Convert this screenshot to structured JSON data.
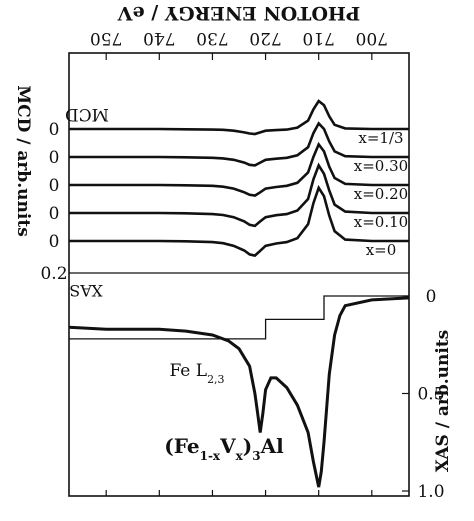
{
  "chart_data": [
    {
      "type": "line",
      "title": "",
      "xlabel": "PHOTON ENERGY / eV",
      "ylabel": "MCD / arb.units",
      "xlim": [
        693,
        757
      ],
      "x_ticks": [
        700,
        710,
        720,
        730,
        740,
        750
      ],
      "y_tick_labels": [
        "0",
        "0",
        "0",
        "0",
        "0",
        "0.2"
      ],
      "offset_spacing": 0.1,
      "scale_bar_label": "0.2",
      "panel_label": "MCD",
      "grid": false,
      "series": [
        {
          "name": "x=1/3",
          "offset": 0.4,
          "x": [
            693,
            700,
            705,
            707,
            708,
            709,
            710,
            711,
            712,
            714,
            716,
            718,
            720,
            721,
            722,
            723,
            724,
            726,
            728,
            730,
            735,
            740,
            745,
            750,
            757
          ],
          "y": [
            0,
            0,
            0.002,
            0.015,
            0.045,
            0.085,
            0.1,
            0.07,
            0.03,
            0.005,
            -0.002,
            -0.004,
            -0.006,
            -0.012,
            -0.018,
            -0.016,
            -0.012,
            -0.006,
            -0.003,
            -0.002,
            -0.001,
            0,
            0,
            0,
            0
          ]
        },
        {
          "name": "x=0.30",
          "offset": 0.3,
          "x": [
            693,
            700,
            705,
            707,
            708,
            709,
            710,
            711,
            712,
            714,
            716,
            718,
            720,
            721,
            722,
            723,
            724,
            726,
            728,
            730,
            735,
            740,
            745,
            750,
            757
          ],
          "y": [
            0,
            0,
            0.003,
            0.02,
            0.055,
            0.1,
            0.12,
            0.085,
            0.035,
            0.006,
            -0.003,
            -0.006,
            -0.01,
            -0.02,
            -0.03,
            -0.028,
            -0.02,
            -0.01,
            -0.005,
            -0.003,
            -0.001,
            0,
            0,
            0,
            0
          ]
        },
        {
          "name": "x=0.20",
          "offset": 0.2,
          "x": [
            693,
            700,
            705,
            707,
            708,
            709,
            710,
            711,
            712,
            714,
            716,
            718,
            720,
            721,
            722,
            723,
            724,
            726,
            728,
            730,
            735,
            740,
            745,
            750,
            757
          ],
          "y": [
            0,
            0,
            0.004,
            0.025,
            0.065,
            0.12,
            0.145,
            0.1,
            0.045,
            0.008,
            -0.003,
            -0.007,
            -0.013,
            -0.026,
            -0.038,
            -0.035,
            -0.026,
            -0.013,
            -0.006,
            -0.003,
            -0.001,
            0,
            0,
            0,
            0
          ]
        },
        {
          "name": "x=0.10",
          "offset": 0.1,
          "x": [
            693,
            700,
            705,
            707,
            708,
            709,
            710,
            711,
            712,
            714,
            716,
            718,
            720,
            721,
            722,
            723,
            724,
            726,
            728,
            730,
            735,
            740,
            745,
            750,
            757
          ],
          "y": [
            0,
            0,
            0.005,
            0.03,
            0.08,
            0.14,
            0.17,
            0.12,
            0.05,
            0.009,
            -0.004,
            -0.008,
            -0.015,
            -0.03,
            -0.046,
            -0.042,
            -0.03,
            -0.015,
            -0.007,
            -0.004,
            -0.001,
            0,
            0,
            0,
            0
          ]
        },
        {
          "name": "x=0",
          "offset": 0.0,
          "x": [
            693,
            700,
            705,
            707,
            708,
            709,
            710,
            711,
            712,
            714,
            716,
            718,
            720,
            721,
            722,
            723,
            724,
            726,
            728,
            730,
            735,
            740,
            745,
            750,
            757
          ],
          "y": [
            0,
            0,
            0.005,
            0.035,
            0.09,
            0.16,
            0.19,
            0.135,
            0.06,
            0.01,
            -0.004,
            -0.009,
            -0.017,
            -0.035,
            -0.052,
            -0.048,
            -0.034,
            -0.017,
            -0.008,
            -0.004,
            -0.001,
            0,
            0,
            0,
            0
          ]
        }
      ]
    },
    {
      "type": "line",
      "title": "",
      "xlabel": "",
      "ylabel": "XAS / arb.units",
      "ylim": [
        0,
        1.1
      ],
      "y_ticks": [
        "0",
        "0.5",
        "1.0"
      ],
      "panel_label": "XAS",
      "annotations": [
        "Fe L2,3",
        "(Fe1-xVx)3Al"
      ],
      "grid": false,
      "series": [
        {
          "name": "XAS",
          "x": [
            693,
            700,
            705,
            706,
            707,
            708,
            709,
            709.5,
            710,
            711,
            712,
            714,
            716,
            718,
            719,
            720,
            720.5,
            721,
            721.5,
            722,
            723,
            725,
            727,
            730,
            735,
            740,
            745,
            750,
            757
          ],
          "y": [
            0.01,
            0.02,
            0.05,
            0.1,
            0.2,
            0.4,
            0.75,
            0.9,
            0.98,
            0.85,
            0.7,
            0.56,
            0.47,
            0.42,
            0.42,
            0.48,
            0.6,
            0.7,
            0.6,
            0.5,
            0.36,
            0.27,
            0.23,
            0.2,
            0.18,
            0.17,
            0.17,
            0.17,
            0.16
          ]
        },
        {
          "name": "step",
          "x": [
            693,
            709,
            709,
            720,
            720,
            757
          ],
          "y": [
            0,
            0,
            0.12,
            0.12,
            0.22,
            0.22
          ]
        }
      ]
    }
  ]
}
